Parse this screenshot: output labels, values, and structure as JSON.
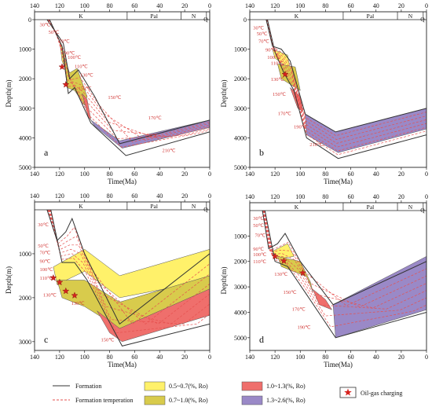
{
  "chart_data": [
    {
      "type": "area",
      "panel": "a",
      "xlabel": "Time(Ma)",
      "ylabel": "Depth(m)",
      "xlim": [
        140,
        0
      ],
      "ylim": [
        0,
        5000
      ],
      "x_ticks": [
        "140",
        "120",
        "100",
        "80",
        "60",
        "40",
        "20",
        "0"
      ],
      "y_ticks": [
        "0",
        "1000",
        "2000",
        "3000",
        "4000",
        "5000"
      ],
      "periods": [
        "K",
        "Pal",
        "N",
        "Q"
      ],
      "period_bounds": [
        145,
        66,
        23,
        2.6
      ],
      "temperature_labels": [
        "30℃",
        "50℃",
        "70℃",
        "90℃",
        "100℃",
        "110℃",
        "130℃",
        "150℃",
        "150℃",
        "170℃",
        "190℃",
        "210℃"
      ],
      "formation_top": [
        [
          130,
          0
        ],
        [
          125,
          300
        ],
        [
          117,
          800
        ],
        [
          112,
          2000
        ],
        [
          105,
          1700
        ],
        [
          92,
          2600
        ],
        [
          72,
          4200
        ],
        [
          0,
          3400
        ]
      ],
      "formation_base": [
        [
          128,
          0
        ],
        [
          118,
          900
        ],
        [
          113,
          2500
        ],
        [
          108,
          2300
        ],
        [
          95,
          3500
        ],
        [
          67,
          4600
        ],
        [
          0,
          3800
        ]
      ],
      "ro_zones": [
        {
          "range": "0.5~0.7(%, Ro)",
          "top": [
            [
              120,
              700
            ],
            [
              116,
              1200
            ]
          ],
          "base": [
            [
              118,
              1400
            ],
            [
              114,
              1800
            ]
          ]
        },
        {
          "range": "0.7~1.0(%, Ro)",
          "top": [
            [
              116,
              1300
            ],
            [
              112,
              1800
            ],
            [
              106,
              1650
            ],
            [
              98,
              2600
            ]
          ],
          "base": [
            [
              114,
              2300
            ],
            [
              108,
              2400
            ],
            [
              100,
              2900
            ]
          ]
        },
        {
          "range": "1.0~1.3(%, Ro)",
          "top": [
            [
              102,
              2500
            ],
            [
              98,
              2700
            ]
          ],
          "base": [
            [
              97,
              3300
            ],
            [
              95,
              3400
            ]
          ]
        },
        {
          "range": "1.3~2.6(%, Ro)",
          "top": [
            [
              95,
              3400
            ],
            [
              72,
              4100
            ],
            [
              0,
              3400
            ]
          ],
          "base": [
            [
              92,
              3600
            ],
            [
              70,
              4350
            ],
            [
              0,
              3650
            ]
          ]
        }
      ],
      "oil_gas_charging": [
        [
          118,
          1600
        ],
        [
          115,
          2200
        ]
      ]
    },
    {
      "type": "area",
      "panel": "b",
      "xlabel": "Time(Ma)",
      "ylabel": "Depth(m)",
      "xlim": [
        140,
        0
      ],
      "ylim": [
        0,
        5000
      ],
      "x_ticks": [
        "140",
        "120",
        "100",
        "80",
        "60",
        "40",
        "20",
        "0"
      ],
      "y_ticks": [
        "0",
        "1000",
        "2000",
        "3000",
        "4000",
        "5000"
      ],
      "periods": [
        "K",
        "Pal",
        "N",
        "Q"
      ],
      "period_bounds": [
        145,
        66,
        23,
        2.6
      ],
      "temperature_labels": [
        "30℃",
        "50℃",
        "70℃",
        "90℃",
        "100℃",
        "110℃",
        "130℃",
        "150℃",
        "170℃",
        "190℃",
        "210℃"
      ],
      "formation_top": [
        [
          127,
          0
        ],
        [
          122,
          900
        ],
        [
          115,
          1000
        ],
        [
          108,
          1400
        ],
        [
          96,
          3200
        ],
        [
          72,
          3800
        ],
        [
          0,
          3000
        ]
      ],
      "formation_base": [
        [
          126,
          0
        ],
        [
          120,
          1100
        ],
        [
          113,
          1800
        ],
        [
          105,
          2400
        ],
        [
          95,
          4000
        ],
        [
          70,
          4700
        ],
        [
          0,
          3900
        ]
      ],
      "ro_zones": [
        {
          "range": "0.5~0.7(%, Ro)",
          "top": [
            [
              122,
              1000
            ],
            [
              110,
              1200
            ]
          ],
          "base": [
            [
              120,
              1300
            ],
            [
              108,
              1700
            ]
          ]
        },
        {
          "range": "0.7~1.0(%, Ro)",
          "top": [
            [
              118,
              1500
            ],
            [
              104,
              1600
            ]
          ],
          "base": [
            [
              115,
              2000
            ],
            [
              100,
              2400
            ]
          ]
        },
        {
          "range": "1.0~1.3(%, Ro)",
          "top": [
            [
              108,
              2300
            ],
            [
              100,
              2600
            ]
          ],
          "base": [
            [
              102,
              3000
            ],
            [
              98,
              3100
            ]
          ]
        },
        {
          "range": "1.3~2.6(%, Ro)",
          "top": [
            [
              96,
              3200
            ],
            [
              72,
              3800
            ],
            [
              0,
              3000
            ]
          ],
          "base": [
            [
              95,
              3900
            ],
            [
              70,
              4500
            ],
            [
              0,
              3700
            ]
          ]
        }
      ],
      "oil_gas_charging": [
        [
          112,
          1850
        ]
      ]
    },
    {
      "type": "area",
      "panel": "c",
      "xlabel": "Time(Ma)",
      "ylabel": "Depth(m)",
      "xlim": [
        140,
        0
      ],
      "ylim": [
        0,
        3200
      ],
      "x_ticks": [
        "140",
        "120",
        "100",
        "80",
        "60",
        "40",
        "20",
        "0"
      ],
      "y_ticks": [
        "1000",
        "2000",
        "3000"
      ],
      "periods": [
        "K",
        "Pal",
        "N",
        "Q"
      ],
      "period_bounds": [
        145,
        66,
        23,
        2.6
      ],
      "temperature_labels": [
        "30℃",
        "50℃",
        "70℃",
        "90℃",
        "100℃",
        "110℃",
        "130℃",
        "130℃",
        "150℃"
      ],
      "formation_top": [
        [
          130,
          0
        ],
        [
          122,
          700
        ],
        [
          115,
          500
        ],
        [
          110,
          200
        ],
        [
          100,
          1000
        ],
        [
          72,
          2600
        ],
        [
          0,
          1000
        ]
      ],
      "formation_base": [
        [
          127,
          0
        ],
        [
          118,
          1200
        ],
        [
          108,
          1200
        ],
        [
          98,
          1600
        ],
        [
          70,
          3100
        ],
        [
          0,
          2600
        ]
      ],
      "ro_zones": [
        {
          "range": "0.5~0.7(%, Ro)",
          "top": [
            [
              125,
              1300
            ],
            [
              100,
              900
            ],
            [
              72,
              1500
            ],
            [
              0,
              900
            ]
          ],
          "base": [
            [
              122,
              1700
            ],
            [
              100,
              1400
            ],
            [
              72,
              2000
            ],
            [
              0,
              1600
            ]
          ]
        },
        {
          "range": "0.7~1.0(%, Ro)",
          "top": [
            [
              122,
              1600
            ],
            [
              100,
              1600
            ],
            [
              72,
              2100
            ],
            [
              0,
              1500
            ]
          ],
          "base": [
            [
              118,
              2000
            ],
            [
              100,
              2200
            ],
            [
              72,
              2700
            ],
            [
              0,
              2000
            ]
          ]
        },
        {
          "range": "1.0~1.3(%, Ro)",
          "top": [
            [
              90,
              2300
            ],
            [
              72,
              2700
            ],
            [
              0,
              1800
            ]
          ],
          "base": [
            [
              80,
              2800
            ],
            [
              70,
              3000
            ],
            [
              0,
              2400
            ]
          ]
        }
      ],
      "oil_gas_charging": [
        [
          125,
          1550
        ],
        [
          120,
          1650
        ],
        [
          115,
          1850
        ],
        [
          108,
          1950
        ]
      ]
    },
    {
      "type": "area",
      "panel": "d",
      "xlabel": "Time(Ma)",
      "ylabel": "Depth(m)",
      "xlim": [
        140,
        0
      ],
      "ylim": [
        0,
        5500
      ],
      "x_ticks": [
        "140",
        "120",
        "100",
        "80",
        "60",
        "40",
        "20",
        "0"
      ],
      "y_ticks": [
        "1000",
        "2000",
        "3000",
        "4000",
        "5000"
      ],
      "periods": [
        "K",
        "Pal",
        "N",
        "Q"
      ],
      "period_bounds": [
        145,
        66,
        23,
        2.6
      ],
      "temperature_labels": [
        "30℃",
        "50℃",
        "70℃",
        "90℃",
        "100℃",
        "110℃",
        "130℃",
        "150℃",
        "170℃",
        "190℃"
      ],
      "formation_top": [
        [
          130,
          0
        ],
        [
          125,
          1500
        ],
        [
          118,
          1300
        ],
        [
          112,
          900
        ],
        [
          100,
          2000
        ],
        [
          74,
          3700
        ],
        [
          0,
          2000
        ]
      ],
      "formation_base": [
        [
          128,
          0
        ],
        [
          120,
          2000
        ],
        [
          110,
          2200
        ],
        [
          95,
          3300
        ],
        [
          72,
          5000
        ],
        [
          0,
          4000
        ]
      ],
      "ro_zones": [
        {
          "range": "0.5~0.7(%, Ro)",
          "top": [
            [
              122,
              1600
            ],
            [
              110,
              1300
            ]
          ],
          "base": [
            [
              118,
              1900
            ],
            [
              105,
              1800
            ]
          ]
        },
        {
          "range": "0.7~1.0(%, Ro)",
          "top": [
            [
              118,
              1800
            ],
            [
              100,
              2000
            ],
            [
              92,
              2800
            ]
          ],
          "base": [
            [
              115,
              2200
            ],
            [
              95,
              2600
            ],
            [
              90,
              3200
            ]
          ]
        },
        {
          "range": "1.0~1.3(%, Ro)",
          "top": [
            [
              90,
              3100
            ],
            [
              80,
              3500
            ]
          ],
          "base": [
            [
              85,
              3700
            ],
            [
              75,
              3900
            ]
          ]
        },
        {
          "range": "1.3~2.6(%, Ro)",
          "top": [
            [
              74,
              3700
            ],
            [
              0,
              1800
            ]
          ],
          "base": [
            [
              72,
              5000
            ],
            [
              0,
              3900
            ]
          ]
        }
      ],
      "oil_gas_charging": [
        [
          120,
          1800
        ],
        [
          113,
          1980
        ],
        [
          98,
          2450
        ]
      ]
    }
  ],
  "legend": {
    "formation": "Formation",
    "formation_temperature": "Formation temperation",
    "ro_05_07": "0.5~0.7(%, Ro)",
    "ro_07_10": "0.7~1.0(%, Ro)",
    "ro_10_13": "1.0~1.3(%, Ro)",
    "ro_13_26": "1.3~2.6(%, Ro)",
    "oil_gas": "Oil-gas charging"
  },
  "colors": {
    "ro_05_07": "#fff16a",
    "ro_07_10": "#d8cb4c",
    "ro_10_13": "#ef6f6c",
    "ro_13_26": "#9a89c7",
    "temp_line": "#e6514f",
    "temp_text": "#d23a38",
    "star": "#d7231f"
  }
}
